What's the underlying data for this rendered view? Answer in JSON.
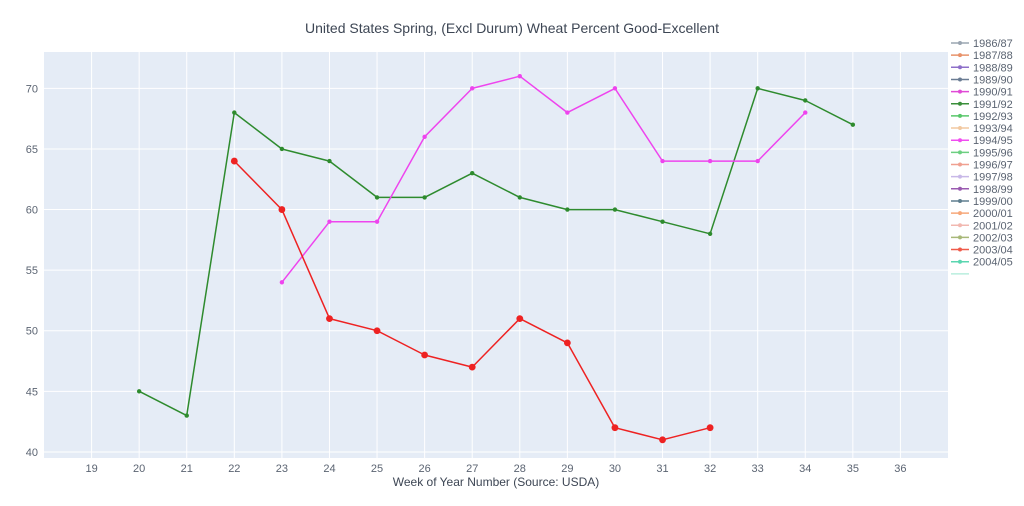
{
  "chart_data": {
    "type": "line",
    "title": "United States Spring, (Excl Durum) Wheat Percent Good-Excellent",
    "xlabel": "Week of Year Number     (Source: USDA)",
    "ylabel": "",
    "xlim": [
      18,
      37
    ],
    "ylim": [
      39.5,
      73
    ],
    "x_ticks": [
      19,
      20,
      21,
      22,
      23,
      24,
      25,
      26,
      27,
      28,
      29,
      30,
      31,
      32,
      33,
      34,
      35,
      36
    ],
    "y_ticks": [
      40,
      45,
      50,
      55,
      60,
      65,
      70
    ],
    "grid": true,
    "legend_position": "right",
    "plot_background": "#e5ecf6",
    "legend": [
      {
        "name": "1986/87",
        "color": "#9aa5b1"
      },
      {
        "name": "1987/88",
        "color": "#e8926a"
      },
      {
        "name": "1988/89",
        "color": "#8e6fc9"
      },
      {
        "name": "1989/90",
        "color": "#6a7c93"
      },
      {
        "name": "1990/91",
        "color": "#e04ad6"
      },
      {
        "name": "1991/92",
        "color": "#3a8f3a"
      },
      {
        "name": "1992/93",
        "color": "#58c76a"
      },
      {
        "name": "1993/94",
        "color": "#f2c8a0"
      },
      {
        "name": "1994/95",
        "color": "#f04df0"
      },
      {
        "name": "1995/96",
        "color": "#6ccf80"
      },
      {
        "name": "1996/97",
        "color": "#f0a090"
      },
      {
        "name": "1997/98",
        "color": "#c8b8e8"
      },
      {
        "name": "1998/99",
        "color": "#9a5ab0"
      },
      {
        "name": "1999/00",
        "color": "#5f7f8f"
      },
      {
        "name": "2000/01",
        "color": "#f6a87a"
      },
      {
        "name": "2001/02",
        "color": "#f2b8b0"
      },
      {
        "name": "2002/03",
        "color": "#a8b878"
      },
      {
        "name": "2003/04",
        "color": "#ef5a4a"
      },
      {
        "name": "2004/05",
        "color": "#5ad6b0"
      }
    ],
    "series": [
      {
        "color": "#2e8b2e",
        "marker_size": 2.2,
        "x": [
          20,
          21,
          22,
          23,
          24,
          25,
          26,
          27,
          28,
          29,
          30,
          31,
          32,
          33,
          34,
          35
        ],
        "y": [
          45,
          43,
          68,
          65,
          64,
          61,
          61,
          63,
          61,
          60,
          60,
          59,
          58,
          70,
          69,
          67
        ]
      },
      {
        "color": "#ee44ee",
        "marker_size": 2.2,
        "x": [
          23,
          24,
          25,
          26,
          27,
          28,
          29,
          30,
          31,
          32,
          33,
          34
        ],
        "y": [
          54,
          59,
          59,
          66,
          70,
          71,
          68,
          70,
          64,
          64,
          64,
          68
        ]
      },
      {
        "color": "#ee2222",
        "marker_size": 3.4,
        "x": [
          22,
          23,
          24,
          25,
          26,
          27,
          28,
          29,
          30,
          31,
          32
        ],
        "y": [
          64,
          60,
          51,
          50,
          48,
          47,
          51,
          49,
          42,
          41,
          42
        ]
      }
    ]
  }
}
